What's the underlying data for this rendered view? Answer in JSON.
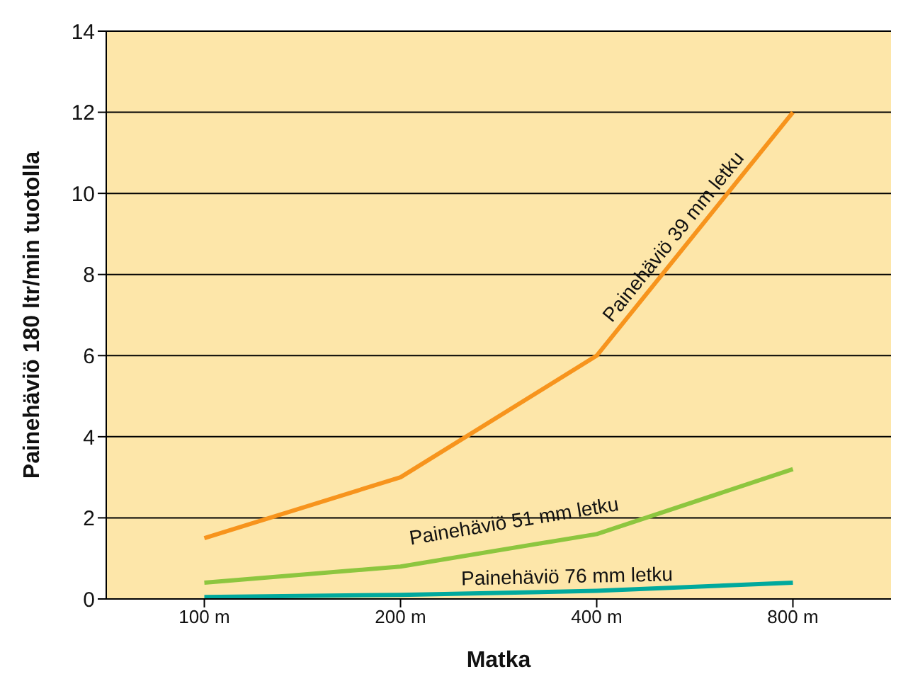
{
  "chart_data": {
    "type": "line",
    "xlabel": "Matka",
    "ylabel": "Painehäviö 180 ltr/min tuotolla",
    "categories": [
      "100 m",
      "200 m",
      "400 m",
      "800 m"
    ],
    "series": [
      {
        "name": "Painehäviö 39 mm letku",
        "color": "#f7941d",
        "values": [
          1.5,
          3,
          6,
          12
        ]
      },
      {
        "name": "Painehäviö 51 mm letku",
        "color": "#8dc63f",
        "values": [
          0.4,
          0.8,
          1.6,
          3.2
        ]
      },
      {
        "name": "Painehäviö 76 mm letku",
        "color": "#00a99d",
        "values": [
          0.05,
          0.1,
          0.2,
          0.4
        ]
      }
    ],
    "ylim": [
      0,
      14
    ],
    "yticks": [
      0,
      2,
      4,
      6,
      8,
      10,
      12,
      14
    ],
    "grid": "y",
    "legend": false,
    "marker": "none",
    "line_style": "solid"
  }
}
